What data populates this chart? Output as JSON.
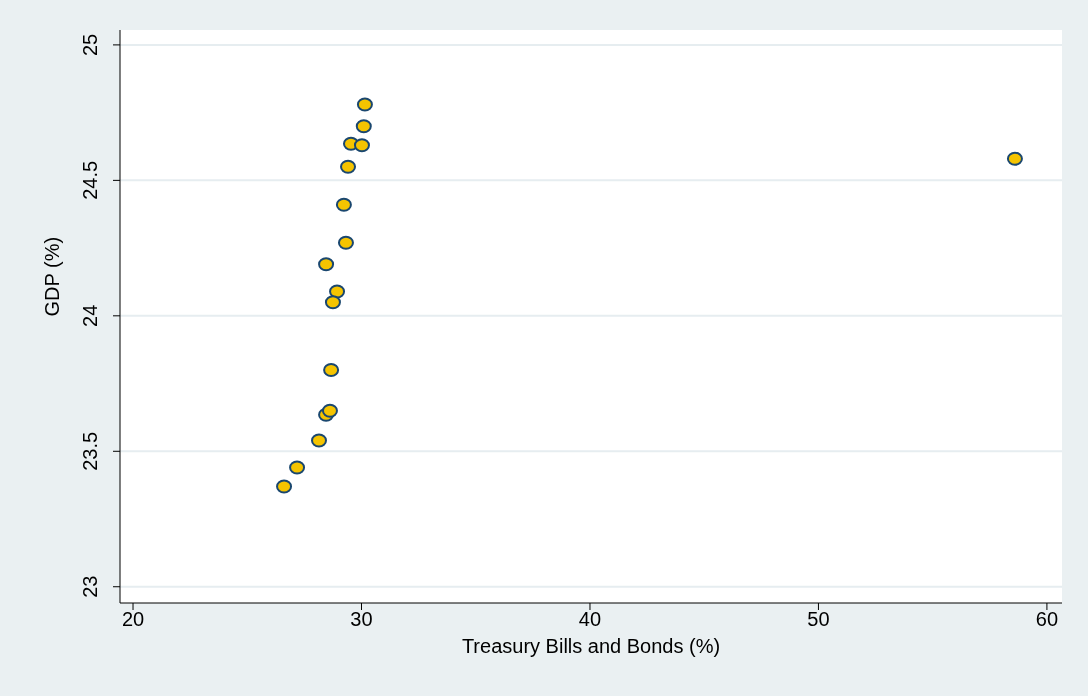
{
  "chart_data": {
    "type": "scatter",
    "xlabel": "Treasury Bills and Bonds (%)",
    "ylabel": "GDP (%)",
    "x": [
      30.15,
      30.1,
      29.54,
      30.02,
      29.41,
      29.23,
      29.32,
      28.45,
      28.93,
      28.75,
      28.67,
      28.45,
      28.62,
      28.14,
      27.18,
      26.61,
      58.6
    ],
    "series": [
      {
        "color": "#f5c400",
        "values": [
          24.78,
          24.7,
          24.635,
          24.63,
          24.55,
          24.41,
          24.27,
          24.19,
          24.09,
          24.05,
          23.8,
          23.635,
          23.65,
          23.54,
          23.44,
          23.37,
          24.58
        ]
      }
    ],
    "xlim": [
      19.43,
      60.66
    ],
    "xticks": [
      20,
      30,
      40,
      50,
      60
    ],
    "ylim": [
      22.94,
      25.055
    ],
    "yticks": [
      23,
      23.5,
      24,
      24.5,
      25
    ],
    "grid": "y",
    "marker": "circle",
    "legend": false
  }
}
